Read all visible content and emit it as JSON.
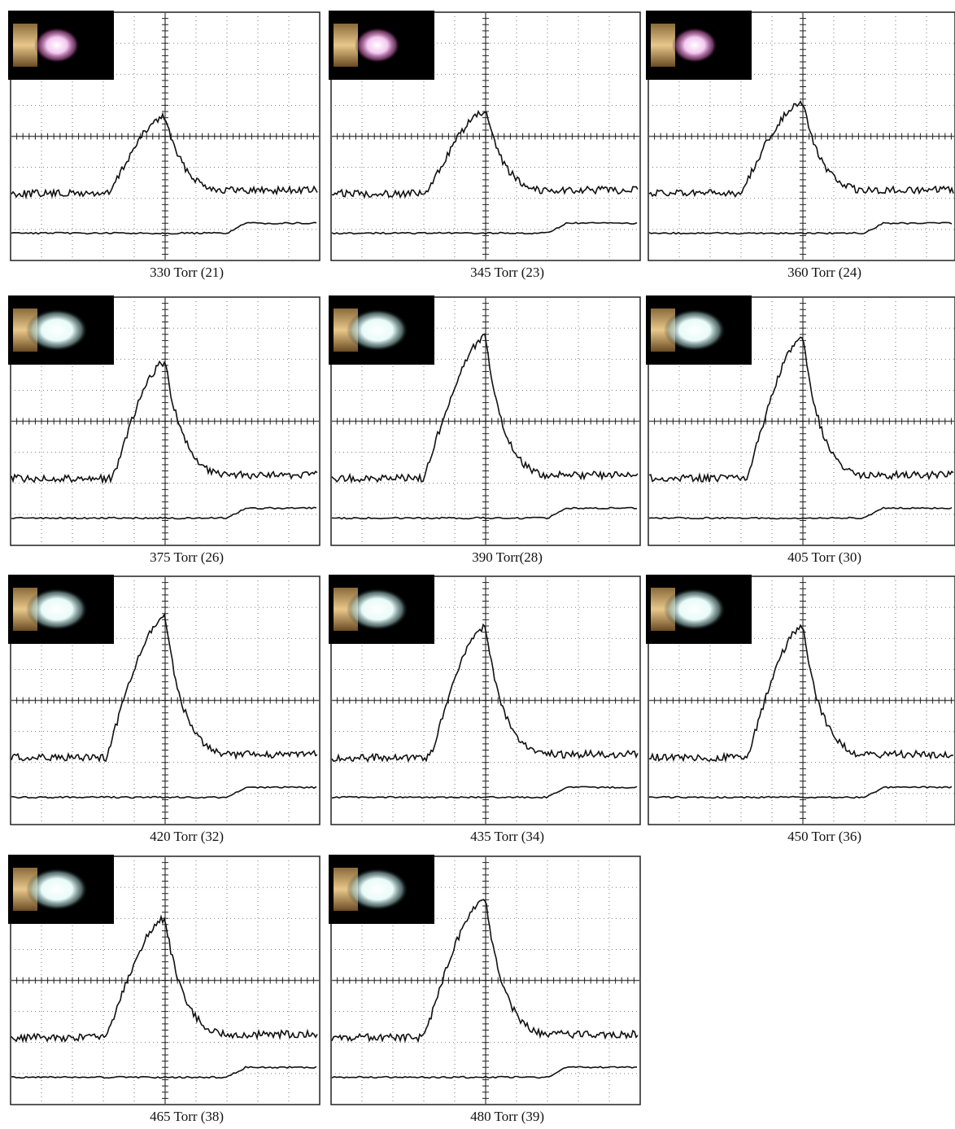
{
  "panels": [
    {
      "caption": "330 Torr (21)"
    },
    {
      "caption": "345 Torr (23)"
    },
    {
      "caption": "360 Torr (24)"
    },
    {
      "caption": "375 Torr (26)"
    },
    {
      "caption": "390 Torr(28)"
    },
    {
      "caption": "405 Torr (30)"
    },
    {
      "caption": "420 Torr (32)"
    },
    {
      "caption": "435 Torr (34)"
    },
    {
      "caption": "450 Torr (36)"
    },
    {
      "caption": "465 Torr (38)"
    },
    {
      "caption": "480 Torr (39)"
    }
  ]
}
